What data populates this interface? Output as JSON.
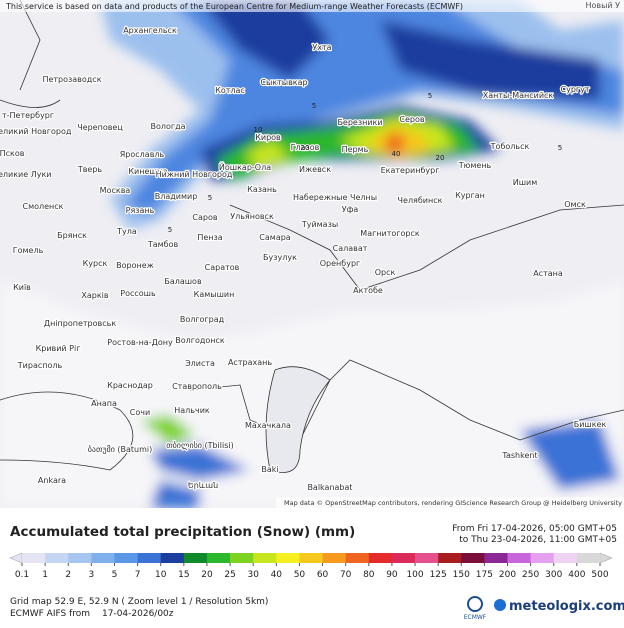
{
  "header": {
    "notice": "This service is based on data and products of the European Centre for Medium-range Weather Forecasts (ECMWF)",
    "corner": "Новый У"
  },
  "map": {
    "cities": [
      "Архангельск",
      "Ухта",
      "Петрозаводск",
      "Котлас",
      "Сыктывкар",
      "Ханты-Мансийск",
      "Сургут",
      "т-Петербург",
      "Великий Новгород",
      "Череповец",
      "Вологда",
      "Березники",
      "Серов",
      "Киров",
      "Глазов",
      "Пермь",
      "Тобольск",
      "Ярославль",
      "Псков",
      "Кинешма",
      "Нижний Новгород",
      "Йошкар-Ола",
      "Тверь",
      "Великие Луки",
      "Ижевск",
      "Екатеринбург",
      "Тюмень",
      "Москва",
      "Владимир",
      "Казань",
      "Ишим",
      "Смоленск",
      "Рязань",
      "Саров",
      "Ульяновск",
      "Набережные Челны",
      "Уфа",
      "Челябинск",
      "Курган",
      "Омск",
      "Тула",
      "Брянск",
      "Пенза",
      "Тамбов",
      "Самара",
      "Туймазы",
      "Салават",
      "Магнитогорск",
      "Гомель",
      "Курск",
      "Воронеж",
      "Бузулук",
      "Оренбург",
      "Саратов",
      "Орск",
      "Астана",
      "Київ",
      "Харків",
      "Россошь",
      "Балашов",
      "Камышин",
      "Актобе",
      "Дніпропетровськ",
      "Волгоград",
      "Кривий Ріг",
      "Ростов-на-Дону",
      "Волгодонск",
      "Элиста",
      "Астрахань",
      "Тирасполь",
      "Краснодар",
      "Ставрополь",
      "Анапа",
      "Сочи",
      "Нальчик",
      "Махачкала",
      "Бишкек",
      "ბათუმი (Batumi)",
      "თბილისი (Tbilisi)",
      "Tashkent",
      "Baki",
      "Ankara",
      "Երևան",
      "Balkanabat"
    ],
    "contours": [
      "5",
      "5",
      "5",
      "5",
      "10",
      "20",
      "40",
      "20",
      "5"
    ],
    "attribution": "Map data © OpenStreetMap contributors, rendering GIScience Research Group @ Heidelberg University"
  },
  "legend": {
    "title": "Accumulated total precipitation (Snow) (mm)",
    "period_from": "From Fri 17-04-2026, 05:00 GMT+05",
    "period_to": "to Thu 23-04-2026, 11:00 GMT+05",
    "ticks": [
      0.1,
      1,
      2,
      3,
      5,
      7,
      10,
      15,
      20,
      25,
      30,
      40,
      50,
      60,
      70,
      80,
      90,
      100,
      125,
      150,
      175,
      200,
      250,
      300,
      400,
      500
    ],
    "colors": [
      "#e4e4f4",
      "#c4d6f4",
      "#a6c6f0",
      "#80b0ec",
      "#5c96e6",
      "#3a72d6",
      "#1c3e9e",
      "#108a2a",
      "#2cb82c",
      "#7ed321",
      "#c8e61e",
      "#f5f01e",
      "#f5c81e",
      "#f59a1e",
      "#ef641e",
      "#e42a2a",
      "#dc2a5a",
      "#e6508c",
      "#a81e1e",
      "#7a0f3c",
      "#8c2896",
      "#c864dc",
      "#e6a0f0",
      "#f0d2f5",
      "#d8d8d8"
    ]
  },
  "footer": {
    "grid": "Grid map 52.9 E, 52.9 N ( Zoom level 1 / Resolution 5km)",
    "model": "ECMWF AIFS from",
    "run": "17-04-2026/00z",
    "ecmwf": "ECMWF",
    "logo": "meteologix.com"
  }
}
